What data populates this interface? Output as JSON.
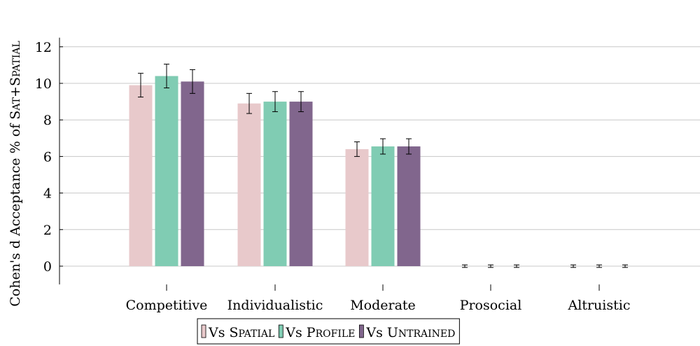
{
  "chart_data": {
    "type": "bar",
    "categories": [
      "Competitive",
      "Individualistic",
      "Moderate",
      "Prosocial",
      "Altruistic"
    ],
    "ylabel": {
      "prefix": "Cohen's d Acceptance % of ",
      "sc_parts": [
        {
          "cap": "S",
          "small": "AT"
        },
        {
          "cap": "+S",
          "small": "PATIAL"
        }
      ]
    },
    "ylim": [
      -1,
      12.5
    ],
    "yticks": [
      0,
      2,
      4,
      6,
      8,
      10,
      12
    ],
    "grid": true,
    "legend_position": "bottom-center",
    "series": [
      {
        "name": "Vs Spatial",
        "cap": "Vs S",
        "small": "PATIAL",
        "color": "#e8c9cb",
        "values": [
          9.9,
          8.9,
          6.4,
          0,
          0
        ],
        "err": [
          0.65,
          0.55,
          0.4,
          0.07,
          0.07
        ]
      },
      {
        "name": "Vs Profile",
        "cap": "Vs P",
        "small": "ROFILE",
        "color": "#80ccb3",
        "values": [
          10.4,
          9.0,
          6.55,
          0,
          0
        ],
        "err": [
          0.65,
          0.55,
          0.42,
          0.07,
          0.07
        ]
      },
      {
        "name": "Vs Untrained",
        "cap": "Vs U",
        "small": "NTRAINED",
        "color": "#81668d",
        "values": [
          10.1,
          9.0,
          6.55,
          0,
          0
        ],
        "err": [
          0.65,
          0.55,
          0.42,
          0.07,
          0.07
        ]
      }
    ]
  }
}
